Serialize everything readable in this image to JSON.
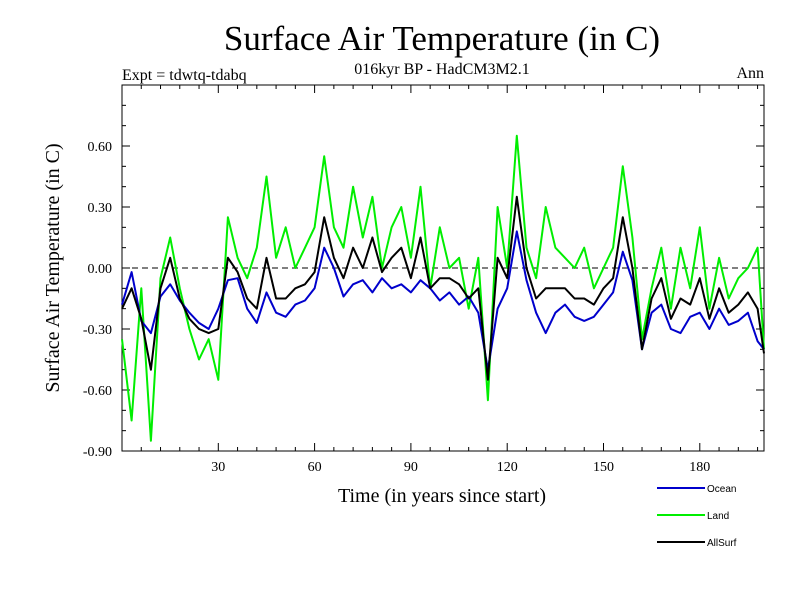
{
  "chart_data": {
    "type": "line",
    "title": "Surface Air Temperature (in C)",
    "subtitle": "016kyr BP - HadCM3M2.1",
    "top_left_label": "Expt = tdwtq-tdabq",
    "top_right_label": "Ann",
    "xlabel": "Time (in years since start)",
    "ylabel": "Surface Air Temperature (in C)",
    "xlim": [
      0,
      200
    ],
    "ylim": [
      -0.9,
      0.9
    ],
    "x_ticks": [
      30,
      60,
      90,
      120,
      150,
      180
    ],
    "x_tick_labels": [
      "30",
      "60",
      "90",
      "120",
      "150",
      "180"
    ],
    "y_ticks": [
      -0.9,
      -0.6,
      -0.3,
      0.0,
      0.3,
      0.6
    ],
    "y_tick_labels": [
      "-0.90",
      "-0.60",
      "-0.30",
      "0.00",
      "0.30",
      "0.60"
    ],
    "zero_line": 0.0,
    "legend_position": "bottom-right-outside",
    "x": [
      0,
      3,
      6,
      9,
      12,
      15,
      18,
      21,
      24,
      27,
      30,
      33,
      36,
      39,
      42,
      45,
      48,
      51,
      54,
      57,
      60,
      63,
      66,
      69,
      72,
      75,
      78,
      81,
      84,
      87,
      90,
      93,
      96,
      99,
      102,
      105,
      108,
      111,
      114,
      117,
      120,
      123,
      126,
      129,
      132,
      135,
      138,
      141,
      144,
      147,
      150,
      153,
      156,
      159,
      162,
      165,
      168,
      171,
      174,
      177,
      180,
      183,
      186,
      189,
      192,
      195,
      198,
      200
    ],
    "series": [
      {
        "name": "Ocean",
        "color": "#0000cc",
        "values": [
          -0.18,
          -0.02,
          -0.26,
          -0.32,
          -0.14,
          -0.08,
          -0.16,
          -0.22,
          -0.27,
          -0.3,
          -0.2,
          -0.06,
          -0.05,
          -0.2,
          -0.27,
          -0.12,
          -0.22,
          -0.24,
          -0.18,
          -0.16,
          -0.1,
          0.1,
          0.0,
          -0.14,
          -0.08,
          -0.06,
          -0.12,
          -0.05,
          -0.1,
          -0.08,
          -0.12,
          -0.06,
          -0.1,
          -0.16,
          -0.12,
          -0.18,
          -0.14,
          -0.22,
          -0.5,
          -0.2,
          -0.1,
          0.18,
          -0.06,
          -0.22,
          -0.32,
          -0.22,
          -0.18,
          -0.24,
          -0.26,
          -0.24,
          -0.18,
          -0.12,
          0.08,
          -0.06,
          -0.4,
          -0.22,
          -0.18,
          -0.3,
          -0.32,
          -0.24,
          -0.22,
          -0.3,
          -0.2,
          -0.28,
          -0.26,
          -0.22,
          -0.36,
          -0.4
        ]
      },
      {
        "name": "Land",
        "color": "#00ee00",
        "values": [
          -0.35,
          -0.75,
          -0.1,
          -0.85,
          -0.05,
          0.15,
          -0.1,
          -0.3,
          -0.45,
          -0.35,
          -0.55,
          0.25,
          0.05,
          -0.05,
          0.1,
          0.45,
          0.05,
          0.2,
          0.0,
          0.1,
          0.2,
          0.55,
          0.2,
          0.1,
          0.4,
          0.15,
          0.35,
          0.0,
          0.2,
          0.3,
          0.05,
          0.4,
          -0.1,
          0.2,
          0.0,
          0.05,
          -0.2,
          0.05,
          -0.65,
          0.3,
          0.0,
          0.65,
          0.1,
          -0.05,
          0.3,
          0.1,
          0.05,
          0.0,
          0.1,
          -0.1,
          0.0,
          0.1,
          0.5,
          0.15,
          -0.35,
          -0.1,
          0.1,
          -0.2,
          0.1,
          -0.1,
          0.2,
          -0.2,
          0.05,
          -0.15,
          -0.05,
          0.0,
          0.1,
          -0.4
        ]
      },
      {
        "name": "AllSurf",
        "color": "#000000",
        "values": [
          -0.2,
          -0.1,
          -0.25,
          -0.5,
          -0.1,
          0.05,
          -0.15,
          -0.25,
          -0.3,
          -0.32,
          -0.3,
          0.05,
          -0.02,
          -0.15,
          -0.2,
          0.05,
          -0.15,
          -0.15,
          -0.1,
          -0.08,
          -0.02,
          0.25,
          0.05,
          -0.05,
          0.1,
          0.0,
          0.15,
          -0.02,
          0.05,
          0.1,
          -0.05,
          0.15,
          -0.1,
          -0.05,
          -0.05,
          -0.08,
          -0.15,
          -0.1,
          -0.55,
          0.05,
          -0.05,
          0.35,
          0.0,
          -0.15,
          -0.1,
          -0.1,
          -0.1,
          -0.15,
          -0.15,
          -0.18,
          -0.1,
          -0.05,
          0.25,
          0.0,
          -0.4,
          -0.15,
          -0.05,
          -0.25,
          -0.15,
          -0.18,
          -0.05,
          -0.25,
          -0.1,
          -0.22,
          -0.18,
          -0.12,
          -0.2,
          -0.42
        ]
      }
    ]
  }
}
